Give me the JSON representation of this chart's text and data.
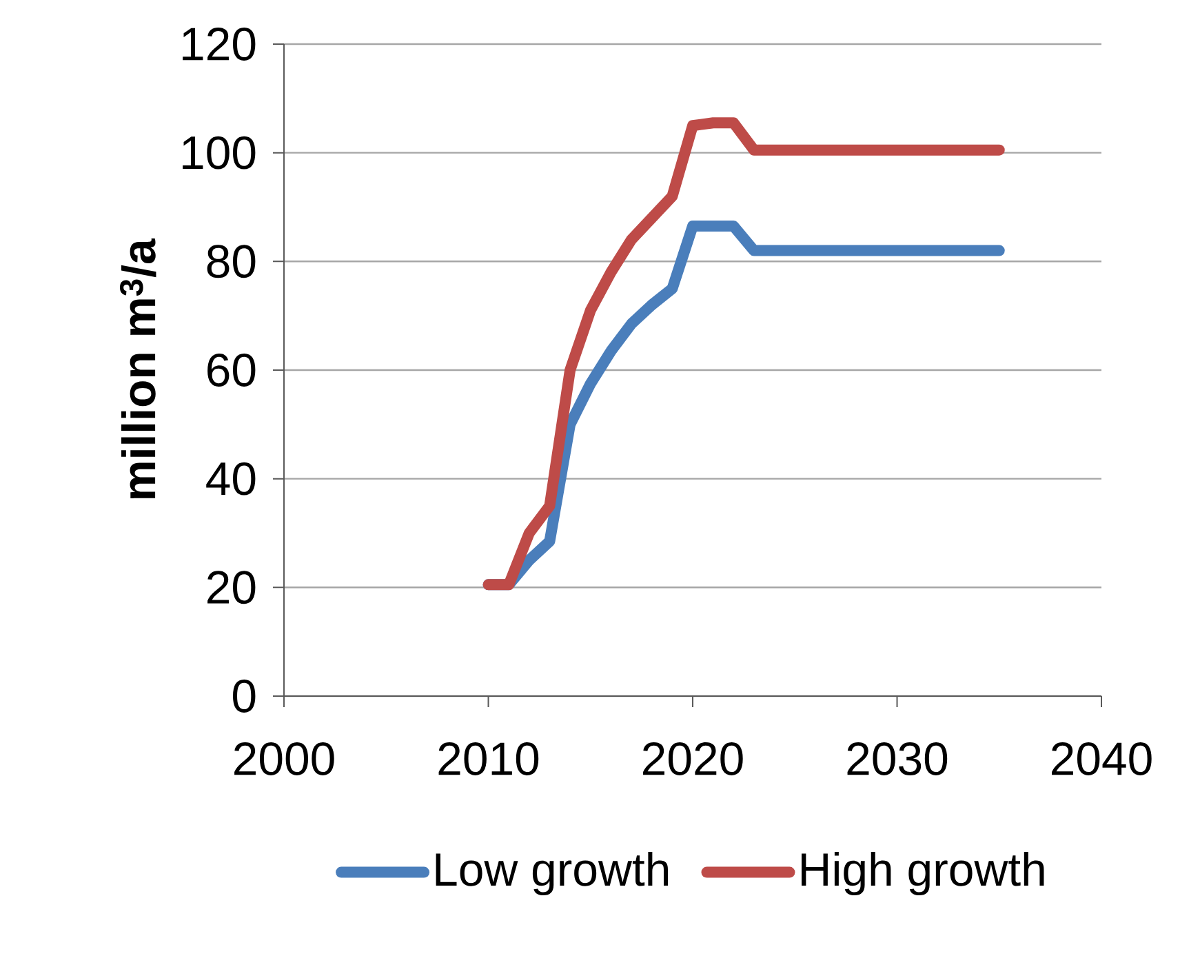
{
  "chart_data": {
    "type": "line",
    "ylabel": "million m$^{3}$/a",
    "xlim": [
      2000,
      2040
    ],
    "xticks": [
      2000,
      2010,
      2020,
      2030,
      2040
    ],
    "ylim": [
      0,
      120
    ],
    "yticks": [
      0,
      20,
      40,
      60,
      80,
      100,
      120
    ],
    "grid": "y",
    "legend": "bottom",
    "marker": "none",
    "line_style": "solid",
    "series": [
      {
        "name": "Low growth",
        "color": "#4a7ebb",
        "x": [
          2010,
          2011,
          2012,
          2013,
          2014,
          2015,
          2016,
          2017,
          2018,
          2019,
          2020,
          2021,
          2022,
          2023,
          2035
        ],
        "values": [
          20.5,
          20.5,
          25,
          28.5,
          50,
          57.5,
          63.5,
          68.5,
          72,
          75,
          86.5,
          86.5,
          86.5,
          82,
          82
        ]
      },
      {
        "name": "High growth",
        "color": "#be4b48",
        "x": [
          2010,
          2011,
          2012,
          2013,
          2014,
          2015,
          2016,
          2017,
          2018,
          2019,
          2020,
          2021,
          2022,
          2023,
          2035
        ],
        "values": [
          20.5,
          20.5,
          30,
          35,
          60,
          71,
          78,
          84,
          88,
          92,
          105,
          105.5,
          105.5,
          100.5,
          100.5
        ]
      }
    ]
  }
}
